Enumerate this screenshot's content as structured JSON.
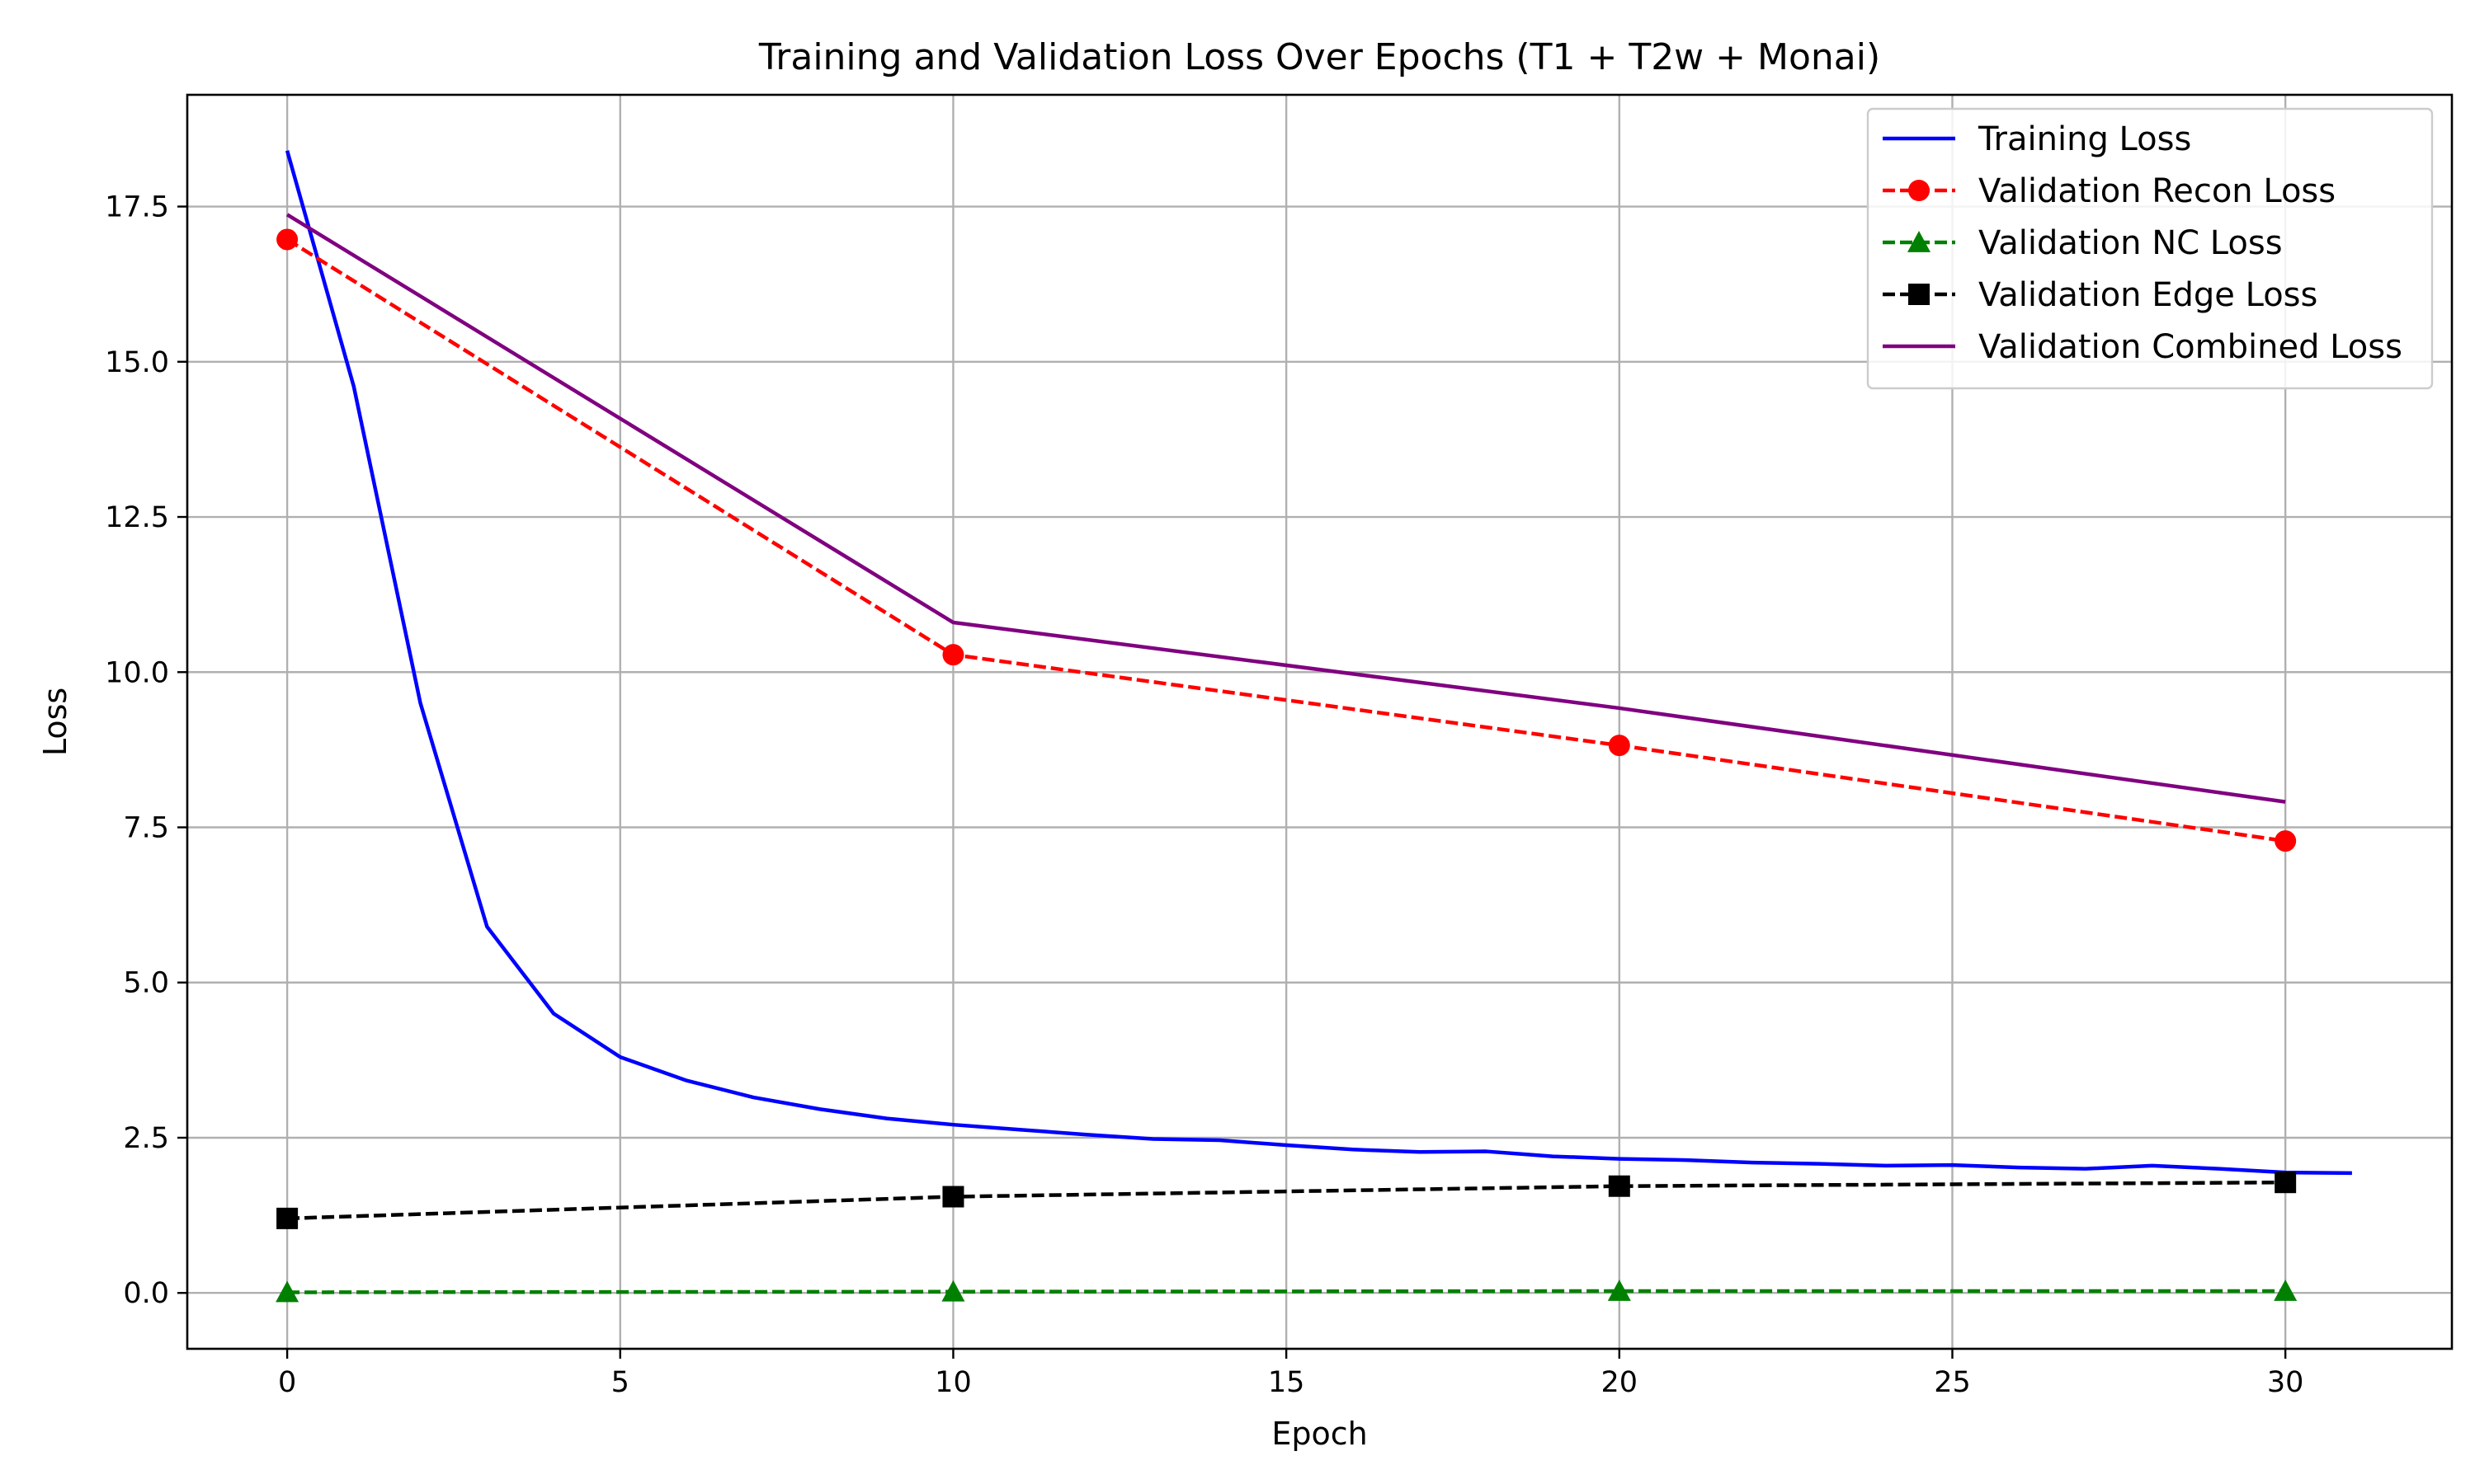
{
  "chart_data": {
    "type": "line",
    "title": "Training and Validation Loss Over Epochs (T1 + T2w + Monai)",
    "xlabel": "Epoch",
    "ylabel": "Loss",
    "xlim": [
      -1.5,
      32.5
    ],
    "ylim": [
      -0.9,
      19.3
    ],
    "xticks": [
      0,
      5,
      10,
      15,
      20,
      25,
      30
    ],
    "xtick_labels": [
      "0",
      "5",
      "10",
      "15",
      "20",
      "25",
      "30"
    ],
    "yticks": [
      0.0,
      2.5,
      5.0,
      7.5,
      10.0,
      12.5,
      15.0,
      17.5
    ],
    "ytick_labels": [
      "0.0",
      "2.5",
      "5.0",
      "7.5",
      "10.0",
      "12.5",
      "15.0",
      "17.5"
    ],
    "grid": true,
    "legend_position": "top-right",
    "series": [
      {
        "name": "Training Loss",
        "color": "#0000ff",
        "linestyle": "solid",
        "marker": "none",
        "x": [
          0,
          1,
          2,
          3,
          4,
          5,
          6,
          7,
          8,
          9,
          10,
          11,
          12,
          13,
          14,
          15,
          16,
          17,
          18,
          19,
          20,
          21,
          22,
          23,
          24,
          25,
          26,
          27,
          28,
          29,
          30,
          31
        ],
        "values": [
          18.4,
          14.6,
          9.5,
          5.9,
          4.5,
          3.8,
          3.42,
          3.15,
          2.96,
          2.81,
          2.71,
          2.63,
          2.55,
          2.48,
          2.46,
          2.38,
          2.31,
          2.27,
          2.28,
          2.2,
          2.16,
          2.14,
          2.1,
          2.08,
          2.05,
          2.06,
          2.02,
          2.0,
          2.05,
          2.0,
          1.94,
          1.93
        ]
      },
      {
        "name": "Validation Recon Loss",
        "color": "#ff0000",
        "linestyle": "dashed",
        "marker": "circle",
        "x": [
          0,
          10,
          20,
          30
        ],
        "values": [
          16.97,
          10.28,
          8.82,
          7.28
        ]
      },
      {
        "name": "Validation NC Loss",
        "color": "#008000",
        "linestyle": "dashed",
        "marker": "triangle",
        "x": [
          0,
          10,
          20,
          30
        ],
        "values": [
          0.01,
          0.02,
          0.03,
          0.03
        ]
      },
      {
        "name": "Validation Edge Loss",
        "color": "#000000",
        "linestyle": "dashed",
        "marker": "square",
        "x": [
          0,
          10,
          20,
          30
        ],
        "values": [
          1.2,
          1.55,
          1.72,
          1.78
        ]
      },
      {
        "name": "Validation Combined Loss",
        "color": "#800080",
        "linestyle": "solid",
        "marker": "none",
        "x": [
          0,
          10,
          20,
          30
        ],
        "values": [
          17.37,
          10.8,
          9.42,
          7.91
        ]
      }
    ]
  }
}
